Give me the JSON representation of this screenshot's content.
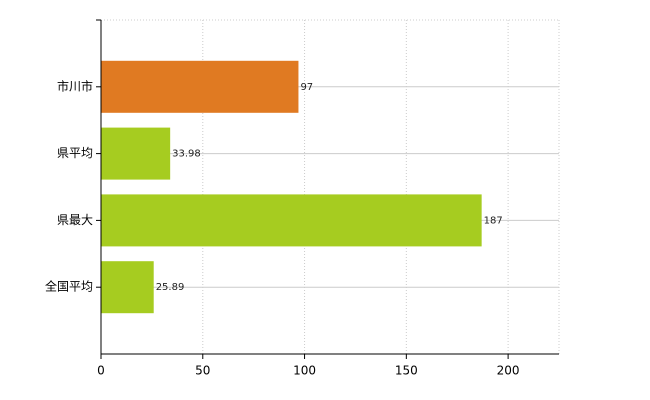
{
  "chart_data": {
    "type": "bar",
    "orientation": "horizontal",
    "categories": [
      "市川市",
      "県平均",
      "県最大",
      "全国平均"
    ],
    "values": [
      97,
      33.98,
      187,
      25.89
    ],
    "colors": [
      "#e07a22",
      "#a6cc20",
      "#a6cc20",
      "#a6cc20"
    ],
    "xlim": [
      0,
      225
    ],
    "xticks": [
      0,
      50,
      100,
      150,
      200
    ],
    "grid": true
  }
}
